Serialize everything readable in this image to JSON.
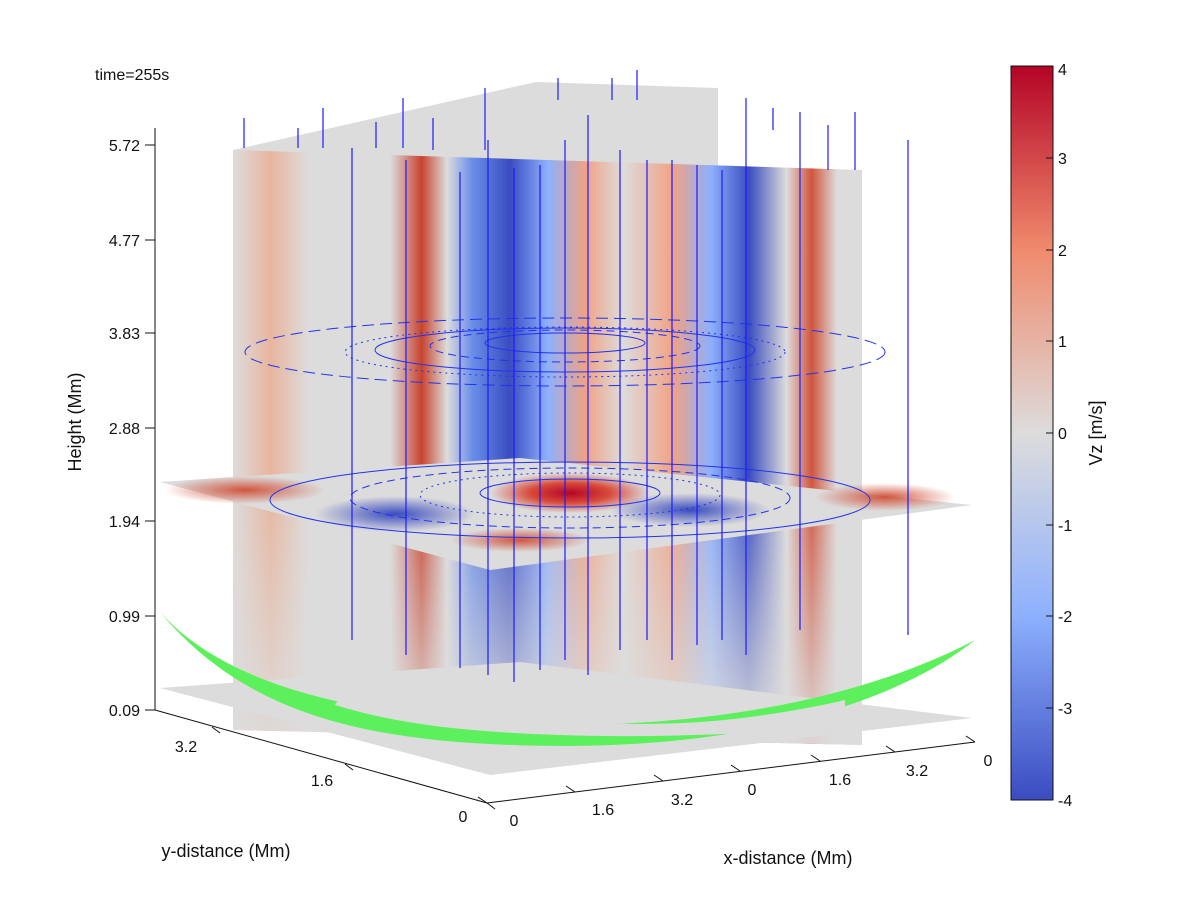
{
  "chart_data": {
    "type": "heatmap",
    "time_label": "time=255s",
    "zlabel": "Height (Mm)",
    "xlabel": "x-distance (Mm)",
    "ylabel": "y-distance (Mm)",
    "z_ticks": [
      "0.09",
      "0.99",
      "1.94",
      "2.88",
      "3.83",
      "4.77",
      "5.72"
    ],
    "x_ticks": [
      "0",
      "1.6",
      "3.2",
      "0",
      "1.6",
      "3.2",
      "0"
    ],
    "y_ticks": [
      "3.2",
      "1.6",
      "0"
    ],
    "colorbar": {
      "label": "Vz [m/s]",
      "ticks": [
        "4",
        "3",
        "2",
        "1",
        "0",
        "-1",
        "-2",
        "-3",
        "-4"
      ],
      "min": -4,
      "max": 4,
      "colormap": [
        "#3a4cc0",
        "#8db0fe",
        "#dddcdc",
        "#f49a7b",
        "#b40426"
      ]
    },
    "field_lines_color": "#1a1aff",
    "isosurface_color": "#5cf05c",
    "slice_color_neutral": "#dddcdc"
  }
}
